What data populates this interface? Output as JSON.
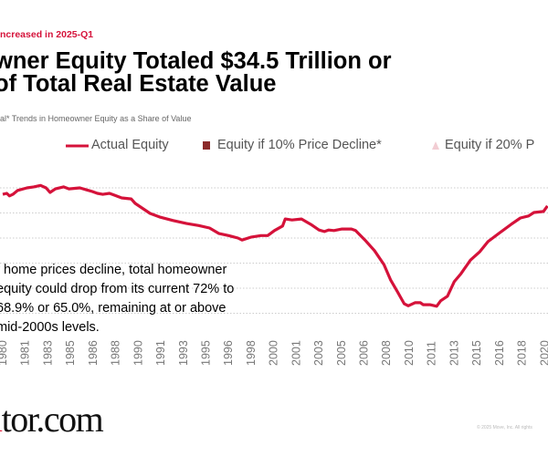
{
  "header": {
    "kicker": "ncreased in 2025-Q1",
    "title_line1": "wner Equity Totaled $34.5 Trillion or",
    "title_line2": "of Total Real Estate Value",
    "subtitle": "al* Trends in Homeowner Equity as a Share of Value"
  },
  "annotation": [
    "f home prices decline, total homeowner",
    "equity could drop from its current 72% to",
    "68.9% or 65.0%, remaining at or above",
    "mid-2000s levels."
  ],
  "footer": {
    "logo": "ltor.com",
    "copyright": "© 2025 Move, Inc. All rights"
  },
  "chart_data": {
    "type": "line",
    "legend": [
      {
        "label": "Actual Equity",
        "marker": "line",
        "color": "#d5123a"
      },
      {
        "label": "Equity if 10% Price Decline*",
        "marker": "square",
        "color": "#8b2a2a"
      },
      {
        "label": "Equity if 20% P",
        "marker": "triangle",
        "color": "#f2cdd3"
      }
    ],
    "legend_position": "top",
    "grid": true,
    "y_axis_labels_visible": false,
    "x_tick_labels": [
      "1980",
      "1981",
      "1983",
      "1985",
      "1986",
      "1988",
      "1990",
      "1991",
      "1993",
      "1995",
      "1996",
      "1998",
      "2000",
      "2001",
      "2003",
      "2005",
      "2006",
      "2008",
      "2010",
      "2011",
      "2013",
      "2015",
      "2016",
      "2018",
      "2020"
    ],
    "ylim_estimated": [
      45,
      75
    ],
    "series": [
      {
        "name": "Actual Equity",
        "color": "#d5123a",
        "x": [
          1980.0,
          1980.3,
          1980.5,
          1980.75,
          1981.1,
          1981.8,
          1982.3,
          1982.8,
          1983.2,
          1983.5,
          1983.9,
          1984.5,
          1984.9,
          1985.7,
          1986.2,
          1986.6,
          1987.0,
          1987.4,
          1987.9,
          1988.4,
          1988.8,
          1989.5,
          1989.8,
          1990.3,
          1990.9,
          1991.6,
          1992.6,
          1993.6,
          1994.5,
          1995.3,
          1996.0,
          1996.7,
          1997.4,
          1997.7,
          1998.4,
          1999.1,
          1999.6,
          2000.1,
          2000.7,
          2000.9,
          2001.4,
          2002.1,
          2002.8,
          2003.4,
          2003.8,
          2004.1,
          2004.5,
          2005.1,
          2005.8,
          2006.1,
          2006.8,
          2007.5,
          2008.2,
          2008.7,
          2009.2,
          2009.7,
          2010.0,
          2010.5,
          2010.9,
          2011.1,
          2011.6,
          2012.1,
          2012.4,
          2012.9,
          2013.4,
          2013.9,
          2014.6,
          2015.3,
          2015.9,
          2016.8,
          2017.6,
          2018.3,
          2018.9,
          2019.3,
          2020.0,
          2020.3
        ],
        "values": [
          68.7,
          68.9,
          68.4,
          68.7,
          69.5,
          70.0,
          70.2,
          70.5,
          70.0,
          69.1,
          69.8,
          70.2,
          69.8,
          70.0,
          69.6,
          69.3,
          68.9,
          68.7,
          68.9,
          68.4,
          68.0,
          67.8,
          66.9,
          66.0,
          64.9,
          64.2,
          63.5,
          62.9,
          62.5,
          62.0,
          60.9,
          60.5,
          60.0,
          59.6,
          60.2,
          60.5,
          60.5,
          61.5,
          62.4,
          63.8,
          63.6,
          63.8,
          62.7,
          61.6,
          61.3,
          61.6,
          61.5,
          61.8,
          61.8,
          61.5,
          59.6,
          57.5,
          54.7,
          51.6,
          49.3,
          46.9,
          46.5,
          47.1,
          47.1,
          46.7,
          46.7,
          46.4,
          47.5,
          48.4,
          51.3,
          52.9,
          55.6,
          57.3,
          59.3,
          61.1,
          62.7,
          64.0,
          64.4,
          65.1,
          65.3,
          66.4
        ]
      }
    ]
  }
}
